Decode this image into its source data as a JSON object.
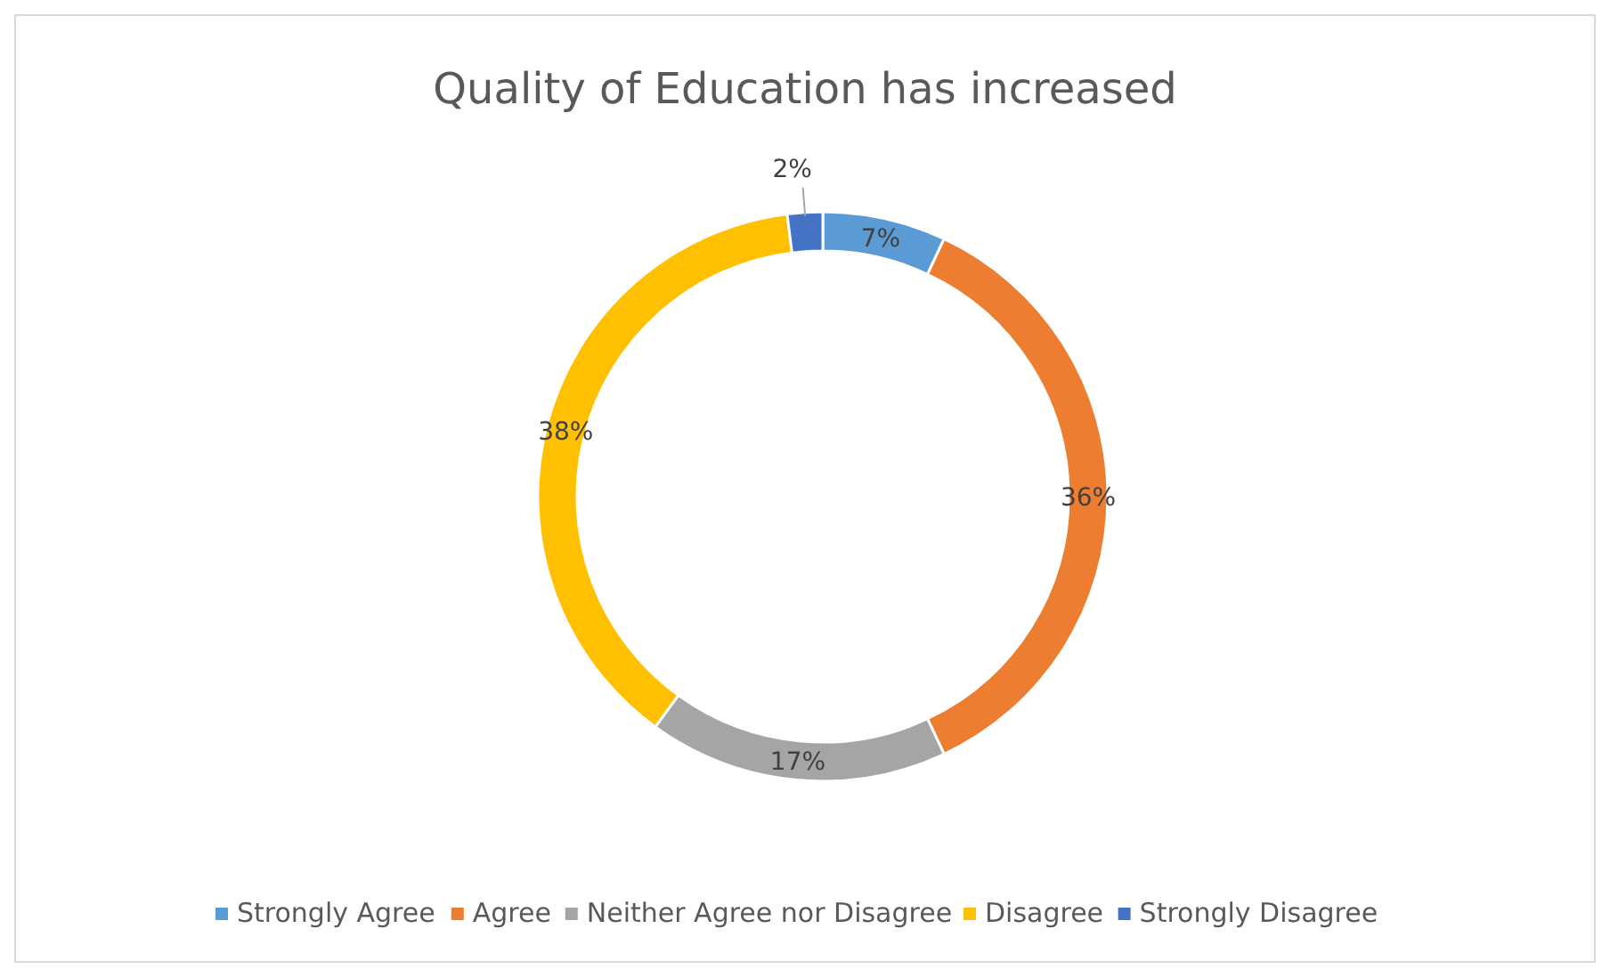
{
  "chart_data": {
    "type": "donut",
    "title": "Quality of Education has increased",
    "categories": [
      "Strongly Agree",
      "Agree",
      "Neither Agree nor Disagree",
      "Disagree",
      "Strongly Disagree"
    ],
    "values": [
      7,
      36,
      17,
      38,
      2
    ],
    "colors": [
      "#5b9bd5",
      "#ed7d31",
      "#a5a5a5",
      "#ffc000",
      "#4472c4"
    ],
    "value_labels": [
      "7%",
      "36%",
      "17%",
      "38%",
      "2%"
    ],
    "legend": "bottom"
  }
}
